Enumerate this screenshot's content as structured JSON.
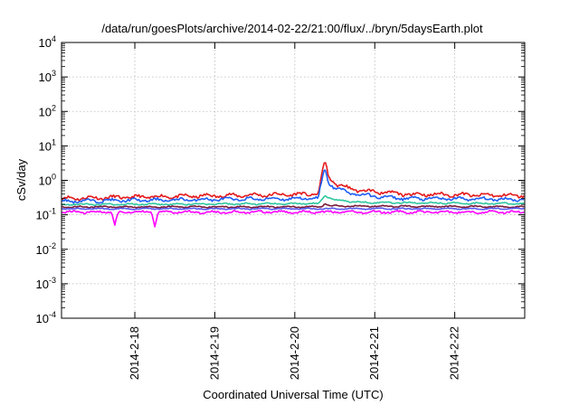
{
  "chart_data": {
    "type": "line",
    "title": "/data/run/goesPlots/archive/2014-02-22/21:00/flux/../bryn/5daysEarth.plot",
    "xlabel": "Coordinated Universal Time (UTC)",
    "ylabel": "cSv/day",
    "y_scale": "log",
    "ylim": [
      0.0001,
      10000
    ],
    "xlim": [
      "2014-02-17 02:00",
      "2014-02-22 21:00"
    ],
    "y_ticks": [
      {
        "value": 0.0001,
        "base": "10",
        "exp": "-4"
      },
      {
        "value": 0.001,
        "base": "10",
        "exp": "-3"
      },
      {
        "value": 0.01,
        "base": "10",
        "exp": "-2"
      },
      {
        "value": 0.1,
        "base": "10",
        "exp": "-1"
      },
      {
        "value": 1,
        "base": "10",
        "exp": "0"
      },
      {
        "value": 10,
        "base": "10",
        "exp": "1"
      },
      {
        "value": 100,
        "base": "10",
        "exp": "2"
      },
      {
        "value": 1000,
        "base": "10",
        "exp": "3"
      },
      {
        "value": 10000,
        "base": "10",
        "exp": "4"
      }
    ],
    "x_ticks": [
      {
        "value": "2014-02-18 00:00",
        "label": "2014-2-18"
      },
      {
        "value": "2014-02-19 00:00",
        "label": "2014-2-19"
      },
      {
        "value": "2014-02-20 00:00",
        "label": "2014-2-20"
      },
      {
        "value": "2014-02-21 00:00",
        "label": "2014-2-21"
      },
      {
        "value": "2014-02-22 00:00",
        "label": "2014-2-22"
      }
    ],
    "grid": true,
    "legend": "none",
    "series": [
      {
        "color": "#e41a1c",
        "base": 0.36,
        "jitter": 0.18,
        "points": [
          [
            "2014-02-17 02:00",
            0.3
          ],
          [
            "2014-02-20 06:00",
            0.4
          ],
          [
            "2014-02-20 07:00",
            0.4
          ],
          [
            "2014-02-20 09:00",
            4.0
          ],
          [
            "2014-02-20 10:00",
            1.4
          ],
          [
            "2014-02-20 12:00",
            0.8
          ],
          [
            "2014-02-20 16:00",
            0.6
          ],
          [
            "2014-02-20 20:00",
            0.5
          ],
          [
            "2014-02-21 02:00",
            0.45
          ],
          [
            "2014-02-21 08:00",
            0.4
          ],
          [
            "2014-02-22 21:00",
            0.36
          ]
        ]
      },
      {
        "color": "#1f5ff5",
        "base": 0.27,
        "jitter": 0.16,
        "points": [
          [
            "2014-02-17 02:00",
            0.25
          ],
          [
            "2014-02-20 06:00",
            0.3
          ],
          [
            "2014-02-20 07:00",
            0.3
          ],
          [
            "2014-02-20 09:00",
            2.4
          ],
          [
            "2014-02-20 10:00",
            0.9
          ],
          [
            "2014-02-20 12:00",
            0.6
          ],
          [
            "2014-02-20 16:00",
            0.45
          ],
          [
            "2014-02-20 20:00",
            0.38
          ],
          [
            "2014-02-21 02:00",
            0.33
          ],
          [
            "2014-02-21 08:00",
            0.3
          ],
          [
            "2014-02-22 21:00",
            0.28
          ]
        ]
      },
      {
        "color": "#2ec7a0",
        "base": 0.21,
        "jitter": 0.08,
        "points": [
          [
            "2014-02-17 02:00",
            0.2
          ],
          [
            "2014-02-20 06:00",
            0.21
          ],
          [
            "2014-02-20 07:00",
            0.21
          ],
          [
            "2014-02-20 09:00",
            0.36
          ],
          [
            "2014-02-20 12:00",
            0.27
          ],
          [
            "2014-02-20 20:00",
            0.23
          ],
          [
            "2014-02-22 21:00",
            0.21
          ]
        ]
      },
      {
        "color": "#7a1a3a",
        "base": 0.17,
        "jitter": 0.07,
        "points": [
          [
            "2014-02-17 02:00",
            0.17
          ],
          [
            "2014-02-20 08:00",
            0.17
          ],
          [
            "2014-02-20 09:00",
            0.21
          ],
          [
            "2014-02-20 11:00",
            0.18
          ],
          [
            "2014-02-22 21:00",
            0.17
          ]
        ]
      },
      {
        "color": "#5a5af0",
        "base": 0.15,
        "jitter": 0.06,
        "points": [
          [
            "2014-02-17 02:00",
            0.15
          ],
          [
            "2014-02-22 21:00",
            0.15
          ]
        ]
      },
      {
        "color": "#ff00ff",
        "base": 0.12,
        "jitter": 0.12,
        "points": [
          [
            "2014-02-17 02:00",
            0.12
          ],
          [
            "2014-02-17 17:00",
            0.12
          ],
          [
            "2014-02-17 18:00",
            0.05
          ],
          [
            "2014-02-17 19:00",
            0.12
          ],
          [
            "2014-02-18 05:00",
            0.12
          ],
          [
            "2014-02-18 06:00",
            0.045
          ],
          [
            "2014-02-18 07:00",
            0.12
          ],
          [
            "2014-02-22 21:00",
            0.12
          ]
        ]
      }
    ]
  }
}
